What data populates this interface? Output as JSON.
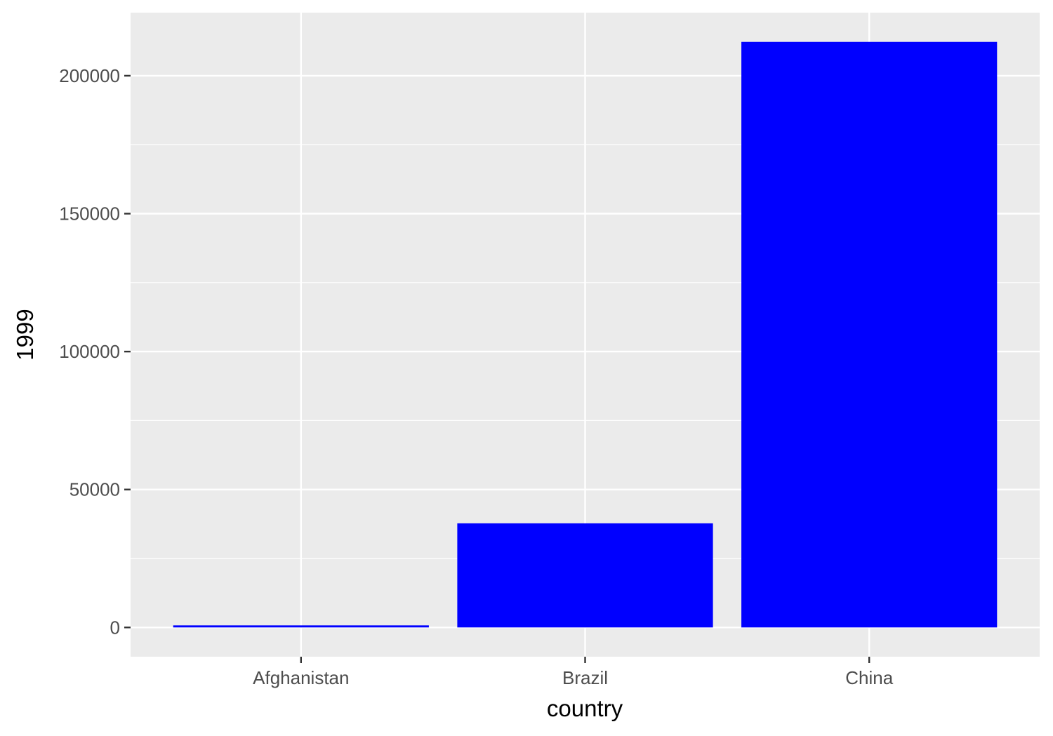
{
  "chart_data": {
    "type": "bar",
    "categories": [
      "Afghanistan",
      "Brazil",
      "China"
    ],
    "values": [
      745,
      37737,
      212258
    ],
    "title": "",
    "xlabel": "country",
    "ylabel": "1999",
    "ylim": [
      -10613,
      222871
    ],
    "yticks": [
      0,
      50000,
      100000,
      150000,
      200000
    ],
    "ytick_labels": [
      "0",
      "50000",
      "100000",
      "150000",
      "200000"
    ],
    "grid": true,
    "legend": "none",
    "colors": {
      "bar": "#0000FF",
      "panel": "#EBEBEB",
      "grid": "#FFFFFF",
      "tick_mark": "#333333"
    }
  }
}
